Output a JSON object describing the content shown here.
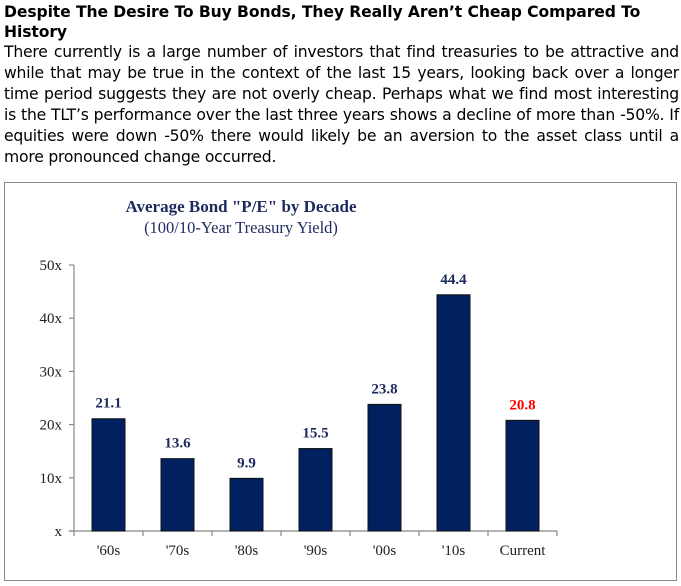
{
  "article": {
    "heading": "Despite The Desire To Buy Bonds, They Really Aren’t Cheap Compared To History",
    "body": "There currently is a large number of investors that find treasuries to be attractive and while that may be true in the context of the last 15 years, looking back over a longer time period suggests they are not overly cheap. Perhaps what we find most interesting is the TLT’s performance over the last three years shows a decline of more than -50%. If equities were down -50% there would likely be an aversion to the asset class until a more pronounced change occurred."
  },
  "chart_data": {
    "type": "bar",
    "title": "Average Bond \"P/E\" by Decade",
    "subtitle": "(100/10-Year Treasury Yield)",
    "xlabel": "",
    "ylabel": "",
    "categories": [
      "'60s",
      "'70s",
      "'80s",
      "'90s",
      "'00s",
      "'10s",
      "Current"
    ],
    "values": [
      21.1,
      13.6,
      9.9,
      15.5,
      23.8,
      44.4,
      20.8
    ],
    "data_labels": [
      "21.1",
      "13.6",
      "9.9",
      "15.5",
      "23.8",
      "44.4",
      "20.8"
    ],
    "ylim": [
      0,
      50
    ],
    "yticks": [
      0,
      10,
      20,
      30,
      40,
      50
    ],
    "ytick_labels": [
      "x",
      "10x",
      "20x",
      "30x",
      "40x",
      "50x"
    ],
    "grid": false,
    "colors": {
      "bar": "#012060",
      "label": "#1c2a5e",
      "highlight_label": "#ff0000",
      "title": "#1c2a5e"
    },
    "highlight_index": 6
  }
}
